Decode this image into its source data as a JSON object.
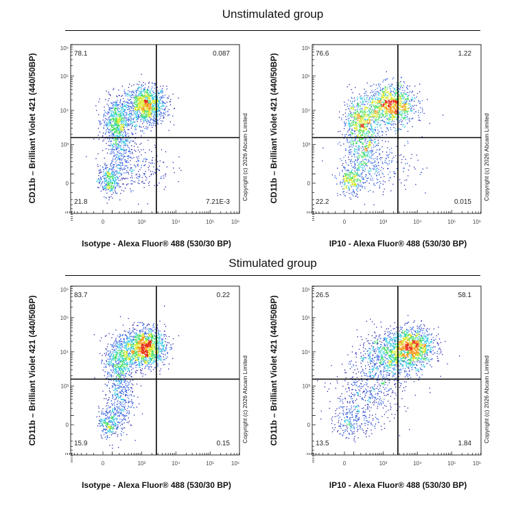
{
  "titles": {
    "unstimulated": "Unstimulated group",
    "stimulated": "Stimulated group"
  },
  "copyright": "Copyright (c) 2026 Abcam Limited",
  "density_colors": [
    "#1a1aa8",
    "#2a5be0",
    "#22c4e0",
    "#3ddc5a",
    "#d8e826",
    "#f59a1a",
    "#e82a1a"
  ],
  "chart_data": [
    {
      "type": "scatter",
      "group": "Unstimulated group",
      "xlabel": "Isotype - Alexa Fluor® 488 (530/30 BP)",
      "ylabel": "CD11b – Brilliant Violet 421 (440/50BP)",
      "x_scale": "biexponential",
      "y_scale": "biexponential",
      "xlim": [
        -1000,
        1000000
      ],
      "ylim": [
        -1000,
        1000000
      ],
      "x_ticks": [
        {
          "value": 0,
          "label": "0"
        },
        {
          "value": 1000,
          "label": "10³"
        },
        {
          "value": 10000,
          "label": "10⁴"
        },
        {
          "value": 100000,
          "label": "10⁵"
        },
        {
          "value": 1000000,
          "label": "10⁶"
        }
      ],
      "y_ticks": [
        {
          "value": 0,
          "label": "0"
        },
        {
          "value": 1000,
          "label": "10³"
        },
        {
          "value": 10000,
          "label": "10⁴"
        },
        {
          "value": 100000,
          "label": "10⁵"
        },
        {
          "value": 1000000,
          "label": "10⁶"
        }
      ],
      "quadrant_gate": {
        "x": 2700,
        "y": 1600
      },
      "quadrants": {
        "upper_left": "78.1",
        "upper_right": "0.087",
        "lower_left": "21.8",
        "lower_right": "7.21E-3"
      },
      "populations": [
        {
          "x": 1300,
          "y": 14000,
          "spread_x": 0.3,
          "spread_y": 0.28,
          "fraction": 0.45
        },
        {
          "x": 150,
          "y": 5000,
          "spread_x": 0.2,
          "spread_y": 0.35,
          "fraction": 0.22
        },
        {
          "x": 200,
          "y": 900,
          "spread_x": 0.2,
          "spread_y": 0.5,
          "fraction": 0.13
        },
        {
          "x": 50,
          "y": 30,
          "spread_x": 0.15,
          "spread_y": 0.22,
          "fraction": 0.11
        },
        {
          "x": 700,
          "y": 200,
          "spread_x": 0.5,
          "spread_y": 0.35,
          "fraction": 0.09
        }
      ]
    },
    {
      "type": "scatter",
      "group": "Unstimulated group",
      "xlabel": "IP10 - Alexa Fluor® 488 (530/30 BP)",
      "ylabel": "CD11b – Brilliant Violet 421 (440/50BP)",
      "x_scale": "biexponential",
      "y_scale": "biexponential",
      "xlim": [
        -1000,
        1000000
      ],
      "ylim": [
        -1000,
        1000000
      ],
      "x_ticks": [
        {
          "value": 0,
          "label": "0"
        },
        {
          "value": 1000,
          "label": "10³"
        },
        {
          "value": 10000,
          "label": "10⁴"
        },
        {
          "value": 100000,
          "label": "10⁵"
        },
        {
          "value": 1000000,
          "label": "10⁶"
        }
      ],
      "y_ticks": [
        {
          "value": 0,
          "label": "0"
        },
        {
          "value": 1000,
          "label": "10³"
        },
        {
          "value": 10000,
          "label": "10⁴"
        },
        {
          "value": 100000,
          "label": "10⁵"
        },
        {
          "value": 1000000,
          "label": "10⁶"
        }
      ],
      "quadrant_gate": {
        "x": 2700,
        "y": 1600
      },
      "quadrants": {
        "upper_left": "76.6",
        "upper_right": "1.22",
        "lower_left": "22.2",
        "lower_right": "0.015"
      },
      "populations": [
        {
          "x": 1700,
          "y": 14000,
          "spread_x": 0.35,
          "spread_y": 0.3,
          "fraction": 0.44
        },
        {
          "x": 180,
          "y": 5000,
          "spread_x": 0.25,
          "spread_y": 0.35,
          "fraction": 0.22
        },
        {
          "x": 250,
          "y": 900,
          "spread_x": 0.25,
          "spread_y": 0.5,
          "fraction": 0.13
        },
        {
          "x": 60,
          "y": 30,
          "spread_x": 0.18,
          "spread_y": 0.22,
          "fraction": 0.11
        },
        {
          "x": 800,
          "y": 250,
          "spread_x": 0.55,
          "spread_y": 0.4,
          "fraction": 0.1
        }
      ]
    },
    {
      "type": "scatter",
      "group": "Stimulated group",
      "xlabel": "Isotype - Alexa Fluor® 488 (530/30 BP)",
      "ylabel": "CD11b – Brilliant Violet 421 (440/50BP)",
      "x_scale": "biexponential",
      "y_scale": "biexponential",
      "xlim": [
        -1000,
        1000000
      ],
      "ylim": [
        -1000,
        1000000
      ],
      "x_ticks": [
        {
          "value": 0,
          "label": "0"
        },
        {
          "value": 1000,
          "label": "10³"
        },
        {
          "value": 10000,
          "label": "10⁴"
        },
        {
          "value": 100000,
          "label": "10⁵"
        },
        {
          "value": 1000000,
          "label": "10⁶"
        }
      ],
      "y_ticks": [
        {
          "value": 0,
          "label": "0"
        },
        {
          "value": 1000,
          "label": "10³"
        },
        {
          "value": 10000,
          "label": "10⁴"
        },
        {
          "value": 100000,
          "label": "10⁵"
        },
        {
          "value": 1000000,
          "label": "10⁶"
        }
      ],
      "quadrant_gate": {
        "x": 2700,
        "y": 1600
      },
      "quadrants": {
        "upper_left": "83.7",
        "upper_right": "0.22",
        "lower_left": "15.9",
        "lower_right": "0.15"
      },
      "populations": [
        {
          "x": 1200,
          "y": 14000,
          "spread_x": 0.3,
          "spread_y": 0.28,
          "fraction": 0.55
        },
        {
          "x": 200,
          "y": 6000,
          "spread_x": 0.22,
          "spread_y": 0.35,
          "fraction": 0.2
        },
        {
          "x": 200,
          "y": 500,
          "spread_x": 0.2,
          "spread_y": 0.5,
          "fraction": 0.15
        },
        {
          "x": 60,
          "y": 30,
          "spread_x": 0.15,
          "spread_y": 0.22,
          "fraction": 0.1
        }
      ]
    },
    {
      "type": "scatter",
      "group": "Stimulated group",
      "xlabel": "IP10 - Alexa Fluor® 488 (530/30 BP)",
      "ylabel": "CD11b – Brilliant Violet 421 (440/50BP)",
      "x_scale": "biexponential",
      "y_scale": "biexponential",
      "xlim": [
        -1000,
        1000000
      ],
      "ylim": [
        -1000,
        1000000
      ],
      "x_ticks": [
        {
          "value": 0,
          "label": "0"
        },
        {
          "value": 1000,
          "label": "10³"
        },
        {
          "value": 10000,
          "label": "10⁴"
        },
        {
          "value": 100000,
          "label": "10⁵"
        },
        {
          "value": 1000000,
          "label": "10⁶"
        }
      ],
      "y_ticks": [
        {
          "value": 0,
          "label": "0"
        },
        {
          "value": 1000,
          "label": "10³"
        },
        {
          "value": 10000,
          "label": "10⁴"
        },
        {
          "value": 100000,
          "label": "10⁵"
        },
        {
          "value": 1000000,
          "label": "10⁶"
        }
      ],
      "quadrant_gate": {
        "x": 2700,
        "y": 1600
      },
      "quadrants": {
        "upper_left": "26.5",
        "upper_right": "58.1",
        "lower_left": "13.5",
        "lower_right": "1.84"
      },
      "populations": [
        {
          "x": 7000,
          "y": 14000,
          "spread_x": 0.32,
          "spread_y": 0.28,
          "fraction": 0.45
        },
        {
          "x": 1500,
          "y": 8000,
          "spread_x": 0.45,
          "spread_y": 0.35,
          "fraction": 0.3
        },
        {
          "x": 350,
          "y": 600,
          "spread_x": 0.5,
          "spread_y": 0.5,
          "fraction": 0.17
        },
        {
          "x": 80,
          "y": 40,
          "spread_x": 0.3,
          "spread_y": 0.25,
          "fraction": 0.08
        }
      ]
    }
  ]
}
